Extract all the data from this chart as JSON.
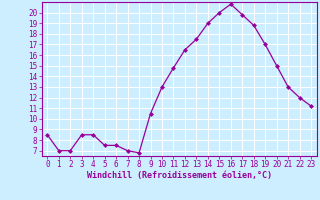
{
  "x": [
    0,
    1,
    2,
    3,
    4,
    5,
    6,
    7,
    8,
    9,
    10,
    11,
    12,
    13,
    14,
    15,
    16,
    17,
    18,
    19,
    20,
    21,
    22,
    23
  ],
  "y": [
    8.5,
    7.0,
    7.0,
    8.5,
    8.5,
    7.5,
    7.5,
    7.0,
    6.8,
    10.5,
    13.0,
    14.8,
    16.5,
    17.5,
    19.0,
    20.0,
    20.8,
    19.8,
    18.8,
    17.0,
    15.0,
    13.0,
    12.0,
    11.2
  ],
  "line_color": "#990099",
  "marker": "D",
  "marker_size": 2.0,
  "bg_color": "#cceeff",
  "grid_color": "#ffffff",
  "xlabel": "Windchill (Refroidissement éolien,°C)",
  "yticks": [
    7,
    8,
    9,
    10,
    11,
    12,
    13,
    14,
    15,
    16,
    17,
    18,
    19,
    20
  ],
  "xlim": [
    -0.5,
    23.5
  ],
  "ylim": [
    6.5,
    21.0
  ],
  "tick_color": "#990099",
  "label_color": "#990099",
  "tick_fontsize": 5.5,
  "xlabel_fontsize": 6.0
}
